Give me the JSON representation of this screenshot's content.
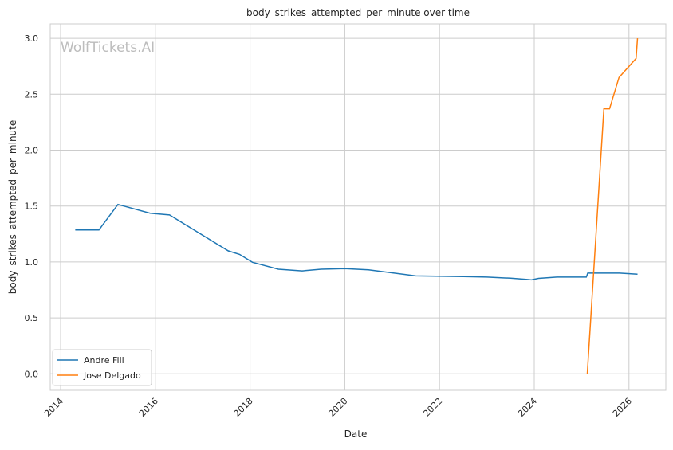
{
  "watermark": "WolfTickets.AI",
  "chart_data": {
    "type": "line",
    "title": "body_strikes_attempted_per_minute over time",
    "xlabel": "Date",
    "ylabel": "body_strikes_attempted_per_minute",
    "xlim": [
      2013.8,
      2026.8
    ],
    "ylim": [
      -0.15,
      3.15
    ],
    "xticks": [
      2014,
      2016,
      2018,
      2020,
      2022,
      2024,
      2026
    ],
    "xtick_labels": [
      "2014",
      "2016",
      "2018",
      "2020",
      "2022",
      "2024",
      "2026"
    ],
    "yticks": [
      0.0,
      0.5,
      1.0,
      1.5,
      2.0,
      2.5,
      3.0
    ],
    "ytick_labels": [
      "0.0",
      "0.5",
      "1.0",
      "1.5",
      "2.0",
      "2.5",
      "3.0"
    ],
    "grid": true,
    "legend_position": "lower-left",
    "series": [
      {
        "name": "Andre Fili",
        "color": "#1f77b4",
        "x": [
          2014.31,
          2014.81,
          2015.21,
          2015.89,
          2016.3,
          2017.54,
          2017.78,
          2018.05,
          2018.6,
          2019.1,
          2019.5,
          2020.0,
          2020.5,
          2021.5,
          2022.5,
          2023.0,
          2023.5,
          2023.83,
          2023.94,
          2024.09,
          2024.48,
          2025.1,
          2025.13,
          2025.8,
          2026.18
        ],
        "y": [
          1.286,
          1.286,
          1.514,
          1.436,
          1.42,
          1.099,
          1.068,
          0.997,
          0.935,
          0.92,
          0.935,
          0.94,
          0.93,
          0.875,
          0.87,
          0.865,
          0.855,
          0.845,
          0.84,
          0.853,
          0.865,
          0.865,
          0.9,
          0.9,
          0.89
        ]
      },
      {
        "name": "Jose Delgado",
        "color": "#ff7f0e",
        "x": [
          2025.12,
          2025.47,
          2025.59,
          2025.79,
          2026.15,
          2026.18
        ],
        "y": [
          0.0,
          2.37,
          2.37,
          2.65,
          2.82,
          3.0
        ]
      }
    ]
  }
}
